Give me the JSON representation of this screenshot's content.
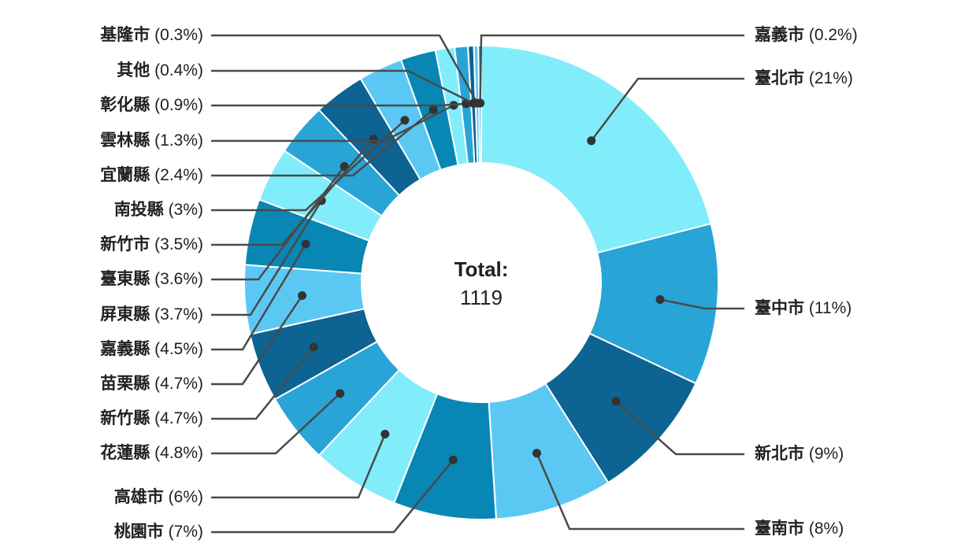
{
  "chart_data": {
    "type": "pie",
    "subtype": "donut",
    "title": "",
    "direction": "clockwise",
    "start_angle_deg": 0,
    "label_position": "outside-with-leader-lines",
    "center": {
      "title": "Total:",
      "value": "1119"
    },
    "total": 1119,
    "slices": [
      {
        "name": "臺北市",
        "pct": 21,
        "pct_text": "(21%)"
      },
      {
        "name": "臺中市",
        "pct": 11,
        "pct_text": "(11%)"
      },
      {
        "name": "新北市",
        "pct": 9,
        "pct_text": "(9%)"
      },
      {
        "name": "臺南市",
        "pct": 8,
        "pct_text": "(8%)"
      },
      {
        "name": "桃園市",
        "pct": 7,
        "pct_text": "(7%)"
      },
      {
        "name": "高雄市",
        "pct": 6,
        "pct_text": "(6%)"
      },
      {
        "name": "花蓮縣",
        "pct": 4.8,
        "pct_text": "(4.8%)"
      },
      {
        "name": "新竹縣",
        "pct": 4.7,
        "pct_text": "(4.7%)"
      },
      {
        "name": "苗栗縣",
        "pct": 4.7,
        "pct_text": "(4.7%)"
      },
      {
        "name": "嘉義縣",
        "pct": 4.5,
        "pct_text": "(4.5%)"
      },
      {
        "name": "屏東縣",
        "pct": 3.7,
        "pct_text": "(3.7%)"
      },
      {
        "name": "臺東縣",
        "pct": 3.6,
        "pct_text": "(3.6%)"
      },
      {
        "name": "新竹市",
        "pct": 3.5,
        "pct_text": "(3.5%)"
      },
      {
        "name": "南投縣",
        "pct": 3,
        "pct_text": "(3%)"
      },
      {
        "name": "宜蘭縣",
        "pct": 2.4,
        "pct_text": "(2.4%)"
      },
      {
        "name": "雲林縣",
        "pct": 1.3,
        "pct_text": "(1.3%)"
      },
      {
        "name": "彰化縣",
        "pct": 0.9,
        "pct_text": "(0.9%)"
      },
      {
        "name": "其他",
        "pct": 0.4,
        "pct_text": "(0.4%)"
      },
      {
        "name": "基隆市",
        "pct": 0.3,
        "pct_text": "(0.3%)"
      },
      {
        "name": "嘉義市",
        "pct": 0.2,
        "pct_text": "(0.2%)"
      }
    ],
    "palette": [
      "#81EDFA",
      "#29A4D7",
      "#0D6391",
      "#5BC8F4",
      "#0887B5"
    ],
    "colors": {
      "leader_line": "#4a4a4a",
      "leader_dot": "#333333",
      "slice_border": "#ffffff",
      "label_text": "#212121",
      "background": "#ffffff"
    }
  }
}
